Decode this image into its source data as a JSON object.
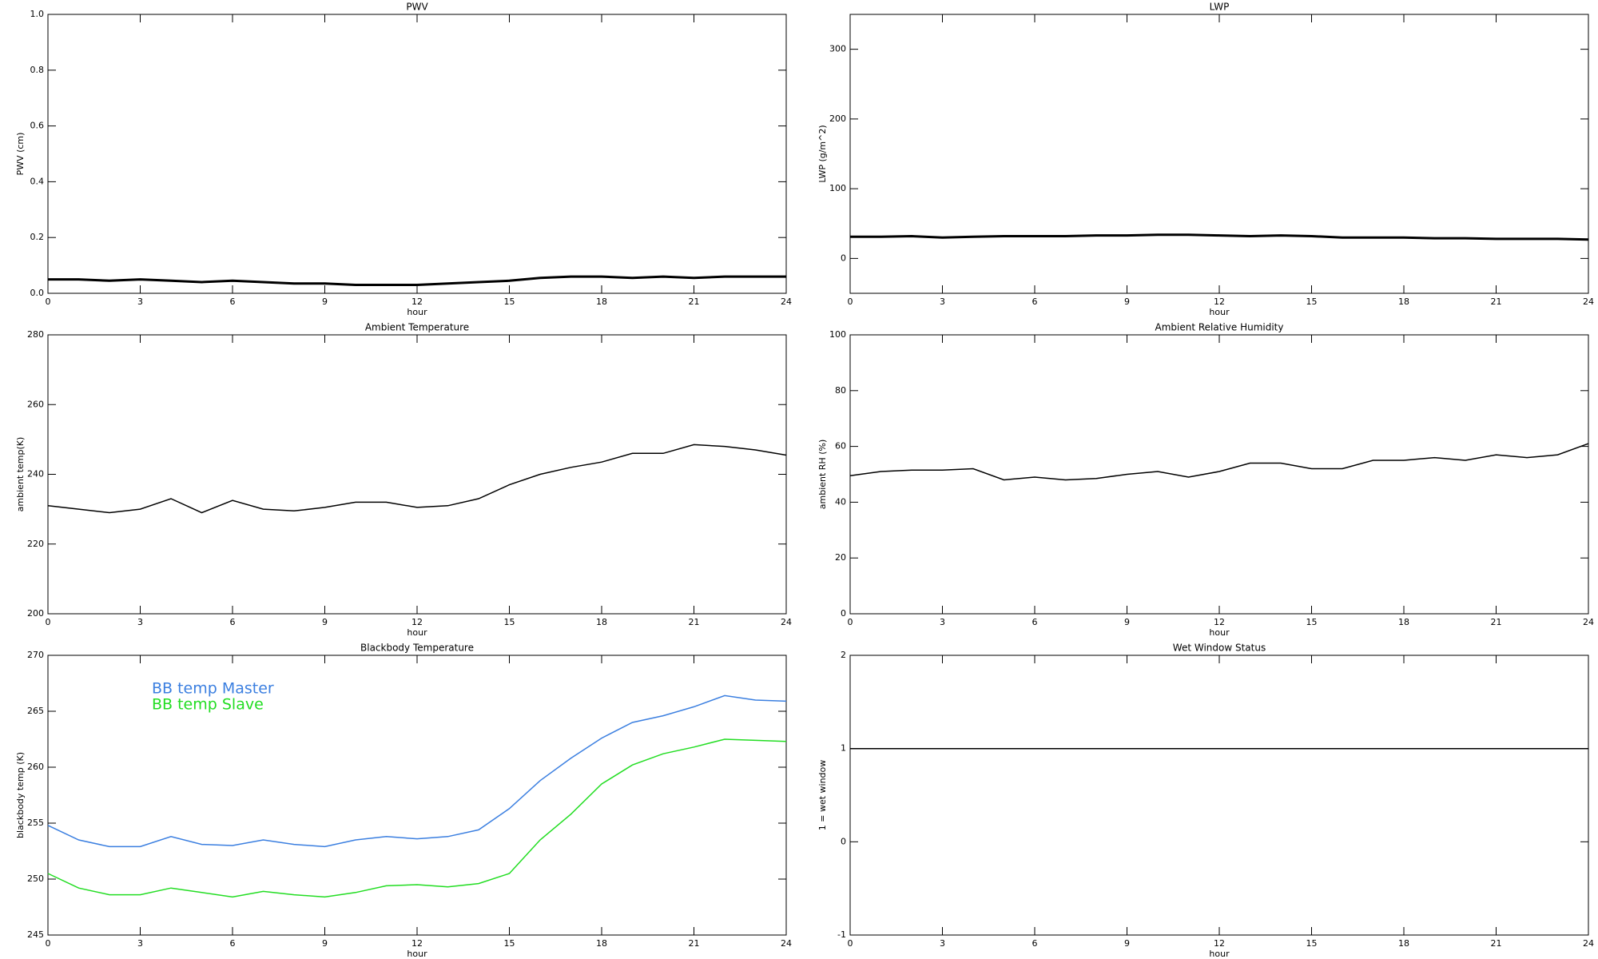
{
  "chart_data": [
    {
      "type": "line",
      "title": "PWV",
      "x_label": "hour",
      "y_label": "PWV (cm)",
      "xlim": [
        0,
        24
      ],
      "xticks": [
        0,
        3,
        6,
        9,
        12,
        15,
        18,
        21,
        24
      ],
      "ylim": [
        0,
        1
      ],
      "yticks": [
        {
          "value": 0,
          "label": "0.0"
        },
        0.2,
        0.4,
        0.6,
        0.8,
        {
          "value": 1,
          "label": "1.0"
        }
      ],
      "x": [
        0,
        1,
        2,
        3,
        4,
        5,
        6,
        7,
        8,
        9,
        10,
        11,
        12,
        13,
        14,
        15,
        16,
        17,
        18,
        19,
        20,
        21,
        22,
        23,
        24
      ],
      "series": [
        {
          "color": "#000000",
          "values": [
            0.05,
            0.05,
            0.045,
            0.05,
            0.045,
            0.04,
            0.045,
            0.04,
            0.035,
            0.035,
            0.03,
            0.03,
            0.03,
            0.035,
            0.04,
            0.045,
            0.055,
            0.06,
            0.06,
            0.055,
            0.06,
            0.055,
            0.06,
            0.06,
            0.06
          ]
        }
      ]
    },
    {
      "type": "line",
      "title": "LWP",
      "x_label": "hour",
      "y_label": "LWP (g/m^2)",
      "xlim": [
        0,
        24
      ],
      "xticks": [
        0,
        3,
        6,
        9,
        12,
        15,
        18,
        21,
        24
      ],
      "ylim": [
        -50,
        350
      ],
      "yticks": [
        0,
        100,
        200,
        300
      ],
      "x": [
        0,
        1,
        2,
        3,
        4,
        5,
        6,
        7,
        8,
        9,
        10,
        11,
        12,
        13,
        14,
        15,
        16,
        17,
        18,
        19,
        20,
        21,
        22,
        23,
        24
      ],
      "series": [
        {
          "color": "#000000",
          "values": [
            31,
            31,
            32,
            30,
            31,
            32,
            32,
            32,
            33,
            33,
            34,
            34,
            33,
            32,
            33,
            32,
            30,
            30,
            30,
            29,
            29,
            28,
            28,
            28,
            27
          ]
        }
      ]
    },
    {
      "type": "line",
      "title": "Ambient Temperature",
      "x_label": "hour",
      "y_label": "ambient temp(K)",
      "xlim": [
        0,
        24
      ],
      "xticks": [
        0,
        3,
        6,
        9,
        12,
        15,
        18,
        21,
        24
      ],
      "ylim": [
        200,
        280
      ],
      "yticks": [
        200,
        220,
        240,
        260,
        280
      ],
      "x": [
        0,
        1,
        2,
        3,
        4,
        5,
        6,
        7,
        8,
        9,
        10,
        11,
        12,
        13,
        14,
        15,
        16,
        17,
        18,
        19,
        20,
        21,
        22,
        23,
        24
      ],
      "series": [
        {
          "color": "#000000",
          "values": [
            231,
            230,
            229,
            230,
            233,
            229,
            232.5,
            230,
            229.5,
            230.5,
            232,
            232,
            230.5,
            231,
            233,
            237,
            240,
            242,
            243.5,
            246,
            246,
            248.5,
            248,
            247,
            245.5
          ]
        }
      ]
    },
    {
      "type": "line",
      "title": "Ambient Relative Humidity",
      "x_label": "hour",
      "y_label": "ambient RH (%)",
      "xlim": [
        0,
        24
      ],
      "xticks": [
        0,
        3,
        6,
        9,
        12,
        15,
        18,
        21,
        24
      ],
      "ylim": [
        0,
        100
      ],
      "yticks": [
        0,
        20,
        40,
        60,
        80,
        100
      ],
      "x": [
        0,
        1,
        2,
        3,
        4,
        5,
        6,
        7,
        8,
        9,
        10,
        11,
        12,
        13,
        14,
        15,
        16,
        17,
        18,
        19,
        20,
        21,
        22,
        23,
        24
      ],
      "series": [
        {
          "color": "#000000",
          "values": [
            49.5,
            51,
            51.5,
            51.5,
            52,
            48,
            49,
            48,
            48.5,
            50,
            51,
            49,
            51,
            54,
            54,
            52,
            52,
            55,
            55,
            56,
            55,
            57,
            56,
            57,
            61
          ]
        }
      ]
    },
    {
      "type": "line",
      "title": "Blackbody Temperature",
      "x_label": "hour",
      "y_label": "blackbody temp (K)",
      "xlim": [
        0,
        24
      ],
      "xticks": [
        0,
        3,
        6,
        9,
        12,
        15,
        18,
        21,
        24
      ],
      "ylim": [
        245,
        270
      ],
      "yticks": [
        245,
        250,
        255,
        260,
        265,
        270
      ],
      "legend": "upper left",
      "x": [
        0,
        1,
        2,
        3,
        4,
        5,
        6,
        7,
        8,
        9,
        10,
        11,
        12,
        13,
        14,
        15,
        16,
        17,
        18,
        19,
        20,
        21,
        22,
        23,
        24
      ],
      "series": [
        {
          "name": "BB temp Master",
          "color": "#3b7fe0",
          "values": [
            254.8,
            253.5,
            252.9,
            252.9,
            253.8,
            253.1,
            253,
            253.5,
            253.1,
            252.9,
            253.5,
            253.8,
            253.6,
            253.8,
            254.4,
            256.3,
            258.8,
            260.8,
            262.6,
            264,
            264.6,
            265.4,
            266.4,
            266,
            265.9
          ]
        },
        {
          "name": "BB temp Slave",
          "color": "#22dd22",
          "values": [
            250.5,
            249.2,
            248.6,
            248.6,
            249.2,
            248.8,
            248.4,
            248.9,
            248.6,
            248.4,
            248.8,
            249.4,
            249.5,
            249.3,
            249.6,
            250.5,
            253.5,
            255.8,
            258.5,
            260.2,
            261.2,
            261.8,
            262.5,
            262.4,
            262.3
          ]
        }
      ]
    },
    {
      "type": "line",
      "title": "Wet Window Status",
      "x_label": "hour",
      "y_label": "1 = wet window",
      "xlim": [
        0,
        24
      ],
      "xticks": [
        0,
        3,
        6,
        9,
        12,
        15,
        18,
        21,
        24
      ],
      "ylim": [
        -1,
        2
      ],
      "yticks": [
        -1,
        0,
        1,
        2
      ],
      "x": [
        0,
        24
      ],
      "series": [
        {
          "color": "#000000",
          "values": [
            1,
            1
          ]
        }
      ]
    }
  ]
}
